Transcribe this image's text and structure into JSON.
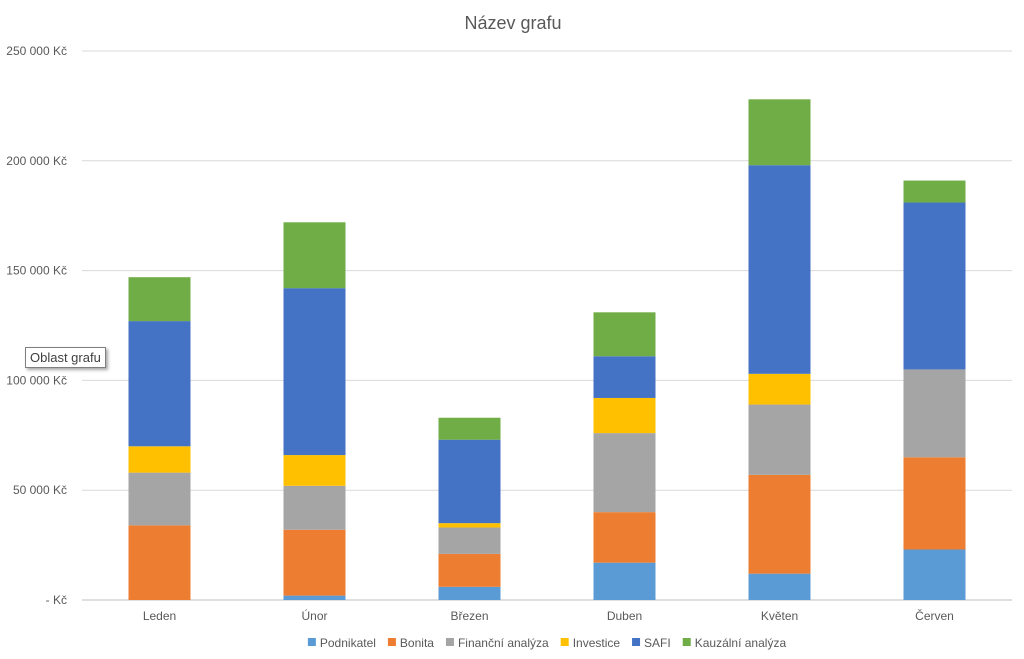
{
  "chart_data": {
    "type": "bar",
    "stacked": true,
    "title": "Název grafu",
    "categories": [
      "Leden",
      "Únor",
      "Březen",
      "Duben",
      "Květen",
      "Červen"
    ],
    "series": [
      {
        "name": "Podnikatel",
        "color": "#5B9BD5",
        "values": [
          0,
          2000,
          6000,
          17000,
          12000,
          23000
        ]
      },
      {
        "name": "Bonita",
        "color": "#ED7D31",
        "values": [
          34000,
          30000,
          15000,
          23000,
          45000,
          42000
        ]
      },
      {
        "name": "Finanční analýza",
        "color": "#A5A5A5",
        "values": [
          24000,
          20000,
          12000,
          36000,
          32000,
          40000
        ]
      },
      {
        "name": "Investice",
        "color": "#FFC000",
        "values": [
          12000,
          14000,
          2000,
          16000,
          14000,
          0
        ]
      },
      {
        "name": "SAFI",
        "color": "#4472C4",
        "values": [
          57000,
          76000,
          38000,
          19000,
          95000,
          76000
        ]
      },
      {
        "name": "Kauzální analýza",
        "color": "#70AD47",
        "values": [
          20000,
          30000,
          10000,
          20000,
          30000,
          10000
        ]
      }
    ],
    "y_ticks": [
      "250 000 Kč",
      "200 000 Kč",
      "150 000 Kč",
      "100 000 Kč",
      "50 000 Kč",
      "-   Kč"
    ],
    "ylim": [
      0,
      250000
    ],
    "grid": true,
    "legend_position": "bottom"
  },
  "tooltip": "Oblast grafu"
}
